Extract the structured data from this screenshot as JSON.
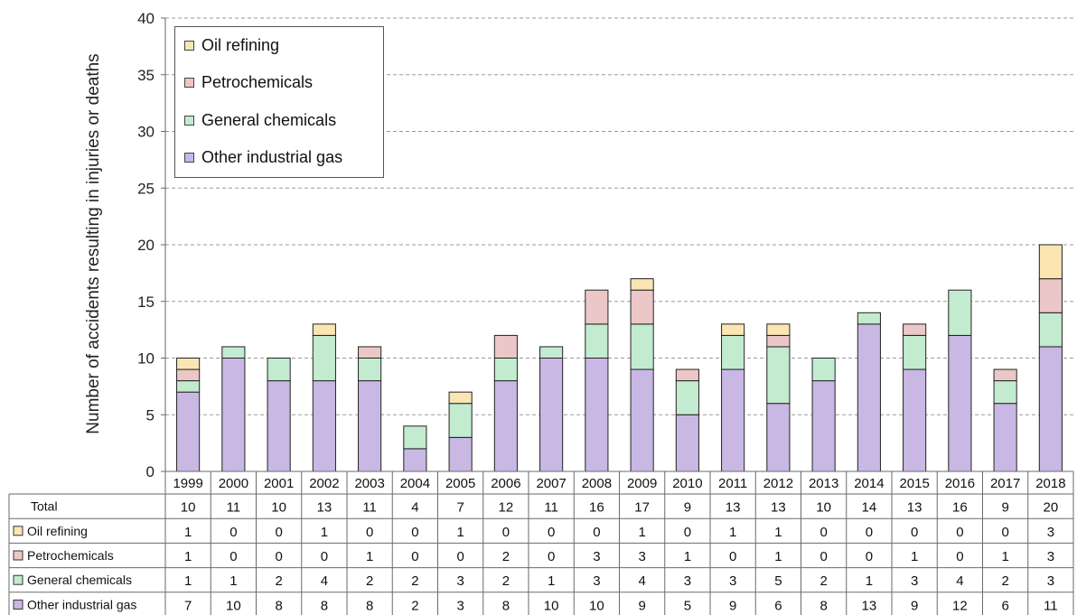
{
  "chart_data": {
    "type": "bar",
    "stacked": true,
    "ylabel": "Number of accidents resulting in injuries or deaths",
    "ylim": [
      0,
      40
    ],
    "yticks": [
      0,
      5,
      10,
      15,
      20,
      25,
      30,
      35,
      40
    ],
    "grid": "horizontal dashed",
    "legend_position": "top-left",
    "categories": [
      "1999",
      "2000",
      "2001",
      "2002",
      "2003",
      "2004",
      "2005",
      "2006",
      "2007",
      "2008",
      "2009",
      "2010",
      "2011",
      "2012",
      "2013",
      "2014",
      "2015",
      "2016",
      "2017",
      "2018"
    ],
    "series": [
      {
        "name": "Other industrial gas",
        "color": "#c9b8e4",
        "edge": "#5a4a86",
        "values": [
          7,
          10,
          8,
          8,
          8,
          2,
          3,
          8,
          10,
          10,
          9,
          5,
          9,
          6,
          8,
          13,
          9,
          12,
          6,
          11
        ]
      },
      {
        "name": "General chemicals",
        "color": "#c3ebcf",
        "edge": "#4d8a5c",
        "values": [
          1,
          1,
          2,
          4,
          2,
          2,
          3,
          2,
          1,
          3,
          4,
          3,
          3,
          5,
          2,
          1,
          3,
          4,
          2,
          3
        ]
      },
      {
        "name": "Petrochemicals",
        "color": "#ecc7c7",
        "edge": "#8b2a2a",
        "values": [
          1,
          0,
          0,
          0,
          1,
          0,
          0,
          2,
          0,
          3,
          3,
          1,
          0,
          1,
          0,
          0,
          1,
          0,
          1,
          3
        ]
      },
      {
        "name": "Oil refining",
        "color": "#fbe6b3",
        "edge": "#7a6230",
        "values": [
          1,
          0,
          0,
          1,
          0,
          0,
          1,
          0,
          0,
          0,
          1,
          0,
          1,
          1,
          0,
          0,
          0,
          0,
          0,
          3
        ]
      }
    ],
    "legend_order": [
      "Oil refining",
      "Petrochemicals",
      "General chemicals",
      "Other industrial gas"
    ],
    "table": {
      "total_label": "Total",
      "totals": [
        10,
        11,
        10,
        13,
        11,
        4,
        7,
        12,
        11,
        16,
        17,
        9,
        13,
        13,
        10,
        14,
        13,
        16,
        9,
        20
      ],
      "row_order": [
        "Oil refining",
        "Petrochemicals",
        "General chemicals",
        "Other industrial gas"
      ]
    }
  }
}
